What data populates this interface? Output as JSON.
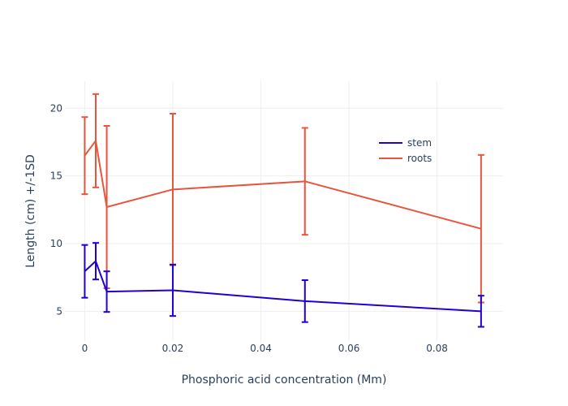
{
  "chart_data": {
    "type": "line",
    "title": "",
    "xlabel": "Phosphoric acid concentration (Mm)",
    "ylabel": "Length (cm) +/-1SD",
    "xlim": [
      -0.0045,
      0.095
    ],
    "ylim": [
      2.8,
      22
    ],
    "x_ticks": [
      0,
      0.02,
      0.04,
      0.06,
      0.08
    ],
    "x_tick_labels": [
      "0",
      "0.02",
      "0.04",
      "0.06",
      "0.08"
    ],
    "y_ticks": [
      5,
      10,
      15,
      20
    ],
    "y_tick_labels": [
      "5",
      "10",
      "15",
      "20"
    ],
    "grid": true,
    "legend_position": "top-right",
    "series": [
      {
        "name": "stem",
        "color": "#1f00d6",
        "x": [
          0,
          0.0025,
          0.005,
          0.02,
          0.05,
          0.09
        ],
        "y": [
          7.95,
          8.7,
          6.45,
          6.55,
          5.75,
          5.0
        ],
        "error": [
          1.95,
          1.35,
          1.5,
          1.9,
          1.55,
          1.15
        ]
      },
      {
        "name": "roots",
        "color": "#e8553d",
        "x": [
          0,
          0.0025,
          0.005,
          0.02,
          0.05,
          0.09
        ],
        "y": [
          16.5,
          17.6,
          12.7,
          14.0,
          14.6,
          11.1
        ],
        "error": [
          2.85,
          3.45,
          6.0,
          5.6,
          3.95,
          5.45
        ]
      }
    ]
  }
}
